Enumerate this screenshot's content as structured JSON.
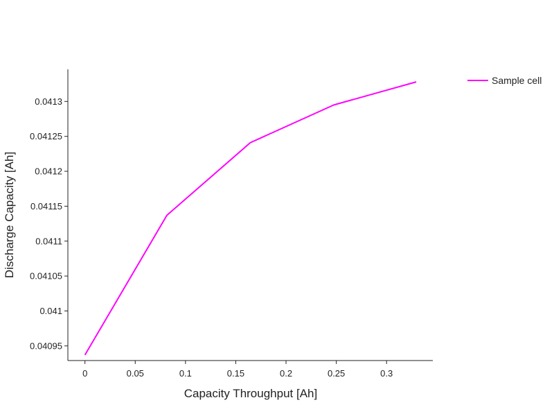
{
  "chart_data": {
    "type": "line",
    "title": "",
    "xlabel": "Capacity Throughput [Ah]",
    "ylabel": "Discharge Capacity [Ah]",
    "xlim": [
      -0.017,
      0.346
    ],
    "ylim": [
      0.040929,
      0.041346
    ],
    "xticks": [
      0,
      0.05,
      0.1,
      0.15,
      0.2,
      0.25,
      0.3
    ],
    "xtick_labels": [
      "0",
      "0.05",
      "0.1",
      "0.15",
      "0.2",
      "0.25",
      "0.3"
    ],
    "yticks": [
      0.04095,
      0.041,
      0.04105,
      0.0411,
      0.04115,
      0.0412,
      0.04125,
      0.0413
    ],
    "ytick_labels": [
      "0.04095",
      "0.041",
      "0.04105",
      "0.0411",
      "0.04115",
      "0.0412",
      "0.04125",
      "0.0413"
    ],
    "grid": false,
    "legend_position": "top-right",
    "series": [
      {
        "name": "Sample cell",
        "color": "#ff00ff",
        "x": [
          0,
          0.0815,
          0.1645,
          0.2475,
          0.3295
        ],
        "y": [
          0.040937,
          0.041137,
          0.041241,
          0.041295,
          0.041328
        ]
      }
    ]
  }
}
